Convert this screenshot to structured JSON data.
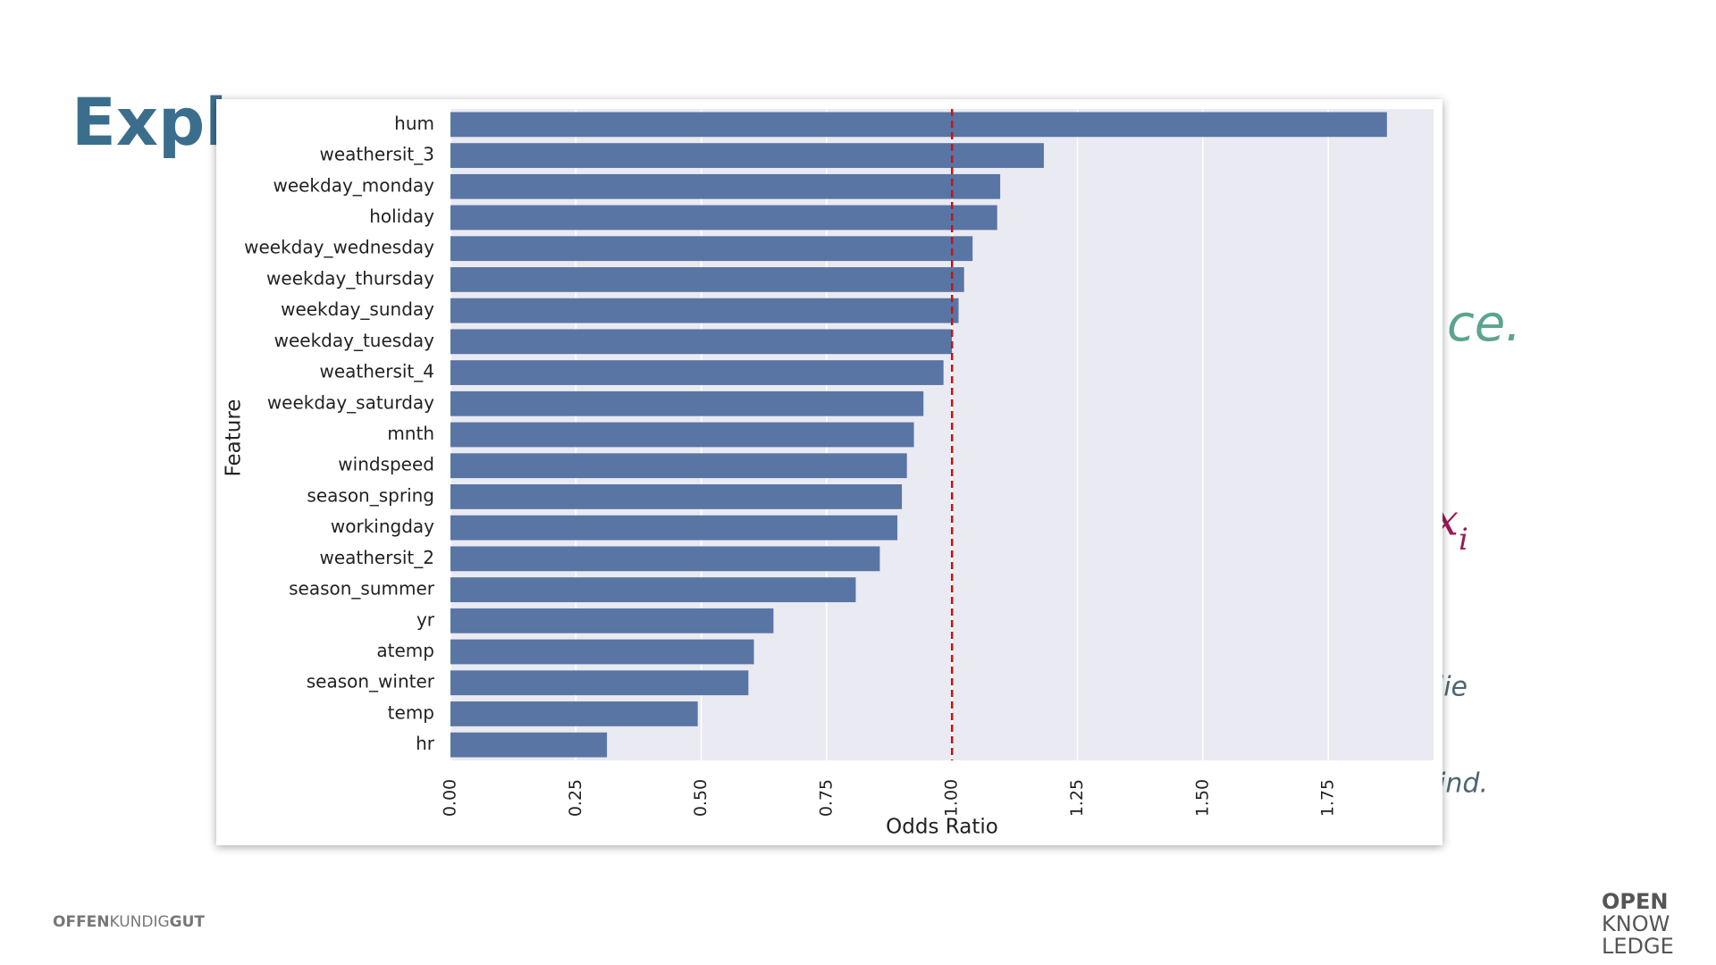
{
  "slide": {
    "title": "Expla",
    "fragments": [
      "ce.",
      "lie",
      "ind."
    ],
    "math": {
      "base": "x",
      "subscript": "i"
    },
    "footer_left": [
      "OFFEN",
      "KUNDIG",
      "GUT"
    ],
    "footer_right": [
      "OPEN",
      "KNOW",
      "LEDGE"
    ]
  },
  "chart_data": {
    "type": "barh",
    "xlabel": "Odds Ratio",
    "ylabel": "Feature",
    "categories": [
      "hum",
      "weathersit_3",
      "weekday_monday",
      "holiday",
      "weekday_wednesday",
      "weekday_thursday",
      "weekday_sunday",
      "weekday_tuesday",
      "weathersit_4",
      "weekday_saturday",
      "mnth",
      "windspeed",
      "season_spring",
      "workingday",
      "weathersit_2",
      "season_summer",
      "yr",
      "atemp",
      "season_winter",
      "temp",
      "hr"
    ],
    "values": [
      1.867,
      1.183,
      1.096,
      1.09,
      1.041,
      1.024,
      1.013,
      1.0,
      0.983,
      0.943,
      0.924,
      0.91,
      0.9,
      0.891,
      0.856,
      0.808,
      0.644,
      0.605,
      0.594,
      0.493,
      0.312
    ],
    "color": "#5975a4",
    "xlim": [
      0,
      1.96
    ],
    "xticks": [
      {
        "value": 0,
        "label": "0.00"
      },
      {
        "value": 0.25,
        "label": "0.25"
      },
      {
        "value": 0.5,
        "label": "0.50"
      },
      {
        "value": 0.75,
        "label": "0.75"
      },
      {
        "value": 1,
        "label": "1.00"
      },
      {
        "value": 1.25,
        "label": "1.25"
      },
      {
        "value": 1.5,
        "label": "1.50"
      },
      {
        "value": 1.75,
        "label": "1.75"
      }
    ],
    "grid": true,
    "reference_line": {
      "value": 1,
      "color": "#cc1111"
    }
  }
}
